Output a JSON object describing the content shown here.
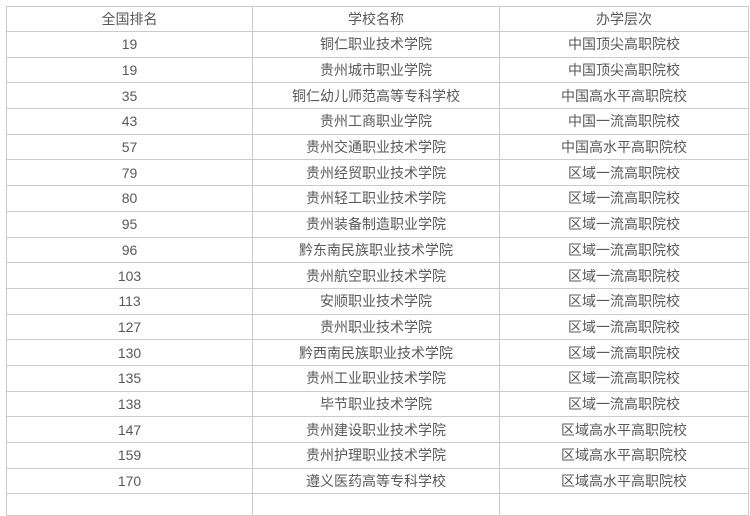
{
  "page": {
    "background": "#ffffff"
  },
  "colors": {
    "border": "#cbcbcb",
    "text": "#595959",
    "background": "#ffffff"
  },
  "table": {
    "headers": {
      "rank": "全国排名",
      "school": "学校名称",
      "level": "办学层次"
    },
    "rows": [
      [
        "19",
        "铜仁职业技术学院",
        "中国顶尖高职院校"
      ],
      [
        "19",
        "贵州城市职业学院",
        "中国顶尖高职院校"
      ],
      [
        "35",
        "铜仁幼儿师范高等专科学校",
        "中国高水平高职院校"
      ],
      [
        "43",
        "贵州工商职业学院",
        "中国一流高职院校"
      ],
      [
        "57",
        "贵州交通职业技术学院",
        "中国高水平高职院校"
      ],
      [
        "79",
        "贵州经贸职业技术学院",
        "区域一流高职院校"
      ],
      [
        "80",
        "贵州轻工职业技术学院",
        "区域一流高职院校"
      ],
      [
        "95",
        "贵州装备制造职业学院",
        "区域一流高职院校"
      ],
      [
        "96",
        "黔东南民族职业技术学院",
        "区域一流高职院校"
      ],
      [
        "103",
        "贵州航空职业技术学院",
        "区域一流高职院校"
      ],
      [
        "113",
        "安顺职业技术学院",
        "区域一流高职院校"
      ],
      [
        "127",
        "贵州职业技术学院",
        "区域一流高职院校"
      ],
      [
        "130",
        "黔西南民族职业技术学院",
        "区域一流高职院校"
      ],
      [
        "135",
        "贵州工业职业技术学院",
        "区域一流高职院校"
      ],
      [
        "138",
        "毕节职业技术学院",
        "区域一流高职院校"
      ],
      [
        "147",
        "贵州建设职业技术学院",
        "区域高水平高职院校"
      ],
      [
        "159",
        "贵州护理职业技术学院",
        "区域高水平高职院校"
      ],
      [
        "170",
        "遵义医药高等专科学校",
        "区域高水平高职院校"
      ]
    ]
  }
}
